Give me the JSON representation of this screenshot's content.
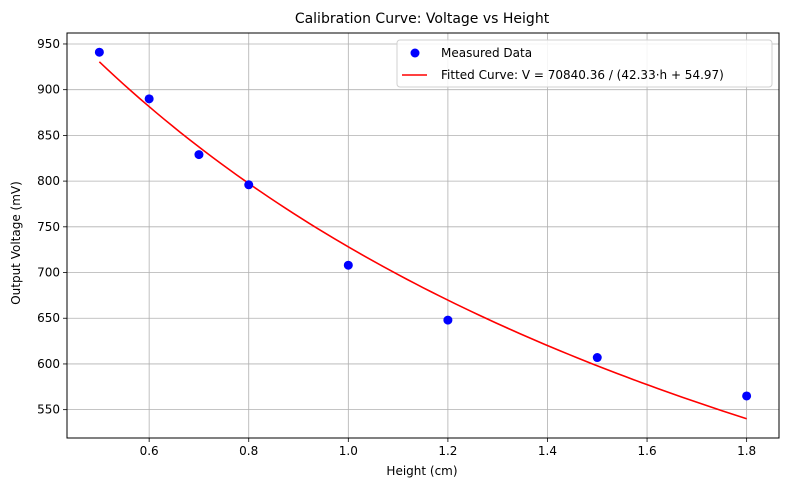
{
  "chart_data": {
    "type": "scatter",
    "title": "Calibration Curve: Voltage vs Height",
    "xlabel": "Height (cm)",
    "ylabel": "Output Voltage (mV)",
    "xlim": [
      0.435,
      1.865
    ],
    "ylim": [
      519,
      962
    ],
    "x_ticks": [
      0.6,
      0.8,
      1.0,
      1.2,
      1.4,
      1.6,
      1.8
    ],
    "x_tick_labels": [
      "0.6",
      "0.8",
      "1.0",
      "1.2",
      "1.4",
      "1.6",
      "1.8"
    ],
    "y_ticks": [
      550,
      600,
      650,
      700,
      750,
      800,
      850,
      900,
      950
    ],
    "y_tick_labels": [
      "550",
      "600",
      "650",
      "700",
      "750",
      "800",
      "850",
      "900",
      "950"
    ],
    "grid": true,
    "legend_position": "top-right",
    "series": [
      {
        "name": "Measured Data",
        "kind": "scatter",
        "color": "#0000ff",
        "x": [
          0.5,
          0.6,
          0.7,
          0.8,
          1.0,
          1.2,
          1.5,
          1.8
        ],
        "y": [
          941,
          890,
          829,
          796,
          708,
          648,
          607,
          565
        ]
      },
      {
        "name": "Fitted Curve: V = 70840.36 / (42.33·h + 54.97)",
        "kind": "line",
        "color": "#ff0000",
        "formula": {
          "a": 70840.36,
          "b": 42.33,
          "c": 54.97
        },
        "x_range": [
          0.5,
          1.8
        ]
      }
    ]
  }
}
